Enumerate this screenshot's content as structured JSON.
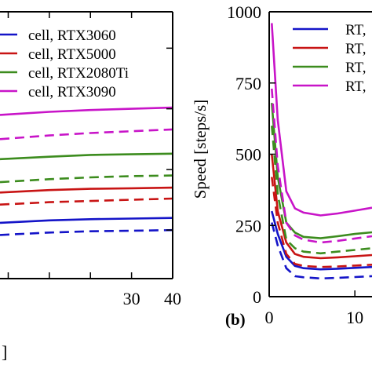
{
  "chart_data": [
    {
      "type": "line",
      "panel_label": "",
      "xlabel": "",
      "xlabel_fragment": "]",
      "ylabel": "",
      "xlim": [
        -2,
        40
      ],
      "ylim": [
        120,
        560
      ],
      "x_ticks": [
        "30",
        "40"
      ],
      "legend": {
        "placement": "top-right",
        "entries": [
          {
            "label": "cell, RTX3060",
            "color": "#1414c8"
          },
          {
            "label": "cell, RTX5000",
            "color": "#c81414"
          },
          {
            "label": "cell, RTX2080Ti",
            "color": "#3c8c1e"
          },
          {
            "label": "cell, RTX3090",
            "color": "#c814c8"
          }
        ]
      },
      "series": [
        {
          "color": "#1414c8",
          "style": "solid",
          "x": [
            -2,
            10,
            20,
            30,
            40
          ],
          "y": [
            212,
            216,
            218,
            219,
            220
          ]
        },
        {
          "color": "#1414c8",
          "style": "dashed",
          "x": [
            -2,
            10,
            20,
            30,
            40
          ],
          "y": [
            192,
            196,
            198,
            199,
            200
          ]
        },
        {
          "color": "#c81414",
          "style": "solid",
          "x": [
            -2,
            10,
            20,
            30,
            40
          ],
          "y": [
            262,
            266,
            268,
            269,
            270
          ]
        },
        {
          "color": "#c81414",
          "style": "dashed",
          "x": [
            -2,
            10,
            20,
            30,
            40
          ],
          "y": [
            242,
            246,
            248,
            250,
            252
          ]
        },
        {
          "color": "#3c8c1e",
          "style": "solid",
          "x": [
            -2,
            10,
            20,
            30,
            40
          ],
          "y": [
            317,
            321,
            324,
            325,
            326
          ]
        },
        {
          "color": "#3c8c1e",
          "style": "dashed",
          "x": [
            -2,
            10,
            20,
            30,
            40
          ],
          "y": [
            279,
            284,
            287,
            289,
            290
          ]
        },
        {
          "color": "#c814c8",
          "style": "solid",
          "x": [
            -2,
            10,
            20,
            30,
            40
          ],
          "y": [
            390,
            395,
            398,
            400,
            402
          ]
        },
        {
          "color": "#c814c8",
          "style": "dashed",
          "x": [
            -2,
            10,
            20,
            30,
            40
          ],
          "y": [
            350,
            356,
            360,
            363,
            366
          ]
        }
      ]
    },
    {
      "type": "line",
      "panel_label": "(b)",
      "xlabel": "",
      "ylabel": "Speed [steps/s]",
      "xlim": [
        0,
        12
      ],
      "ylim": [
        0,
        1000
      ],
      "x_ticks": [
        "0",
        "10"
      ],
      "y_ticks": [
        "0",
        "250",
        "500",
        "750",
        "1000"
      ],
      "legend": {
        "placement": "top-right",
        "entries": [
          {
            "label": "RT,",
            "color": "#1414c8"
          },
          {
            "label": "RT,",
            "color": "#c81414"
          },
          {
            "label": "RT,",
            "color": "#3c8c1e"
          },
          {
            "label": "RT,",
            "color": "#c814c8"
          }
        ]
      },
      "series": [
        {
          "color": "#1414c8",
          "style": "solid",
          "x": [
            0.3,
            1.0,
            2.0,
            3.0,
            4.0,
            6.0,
            8.0,
            10.0,
            12.0
          ],
          "y": [
            300,
            220,
            140,
            108,
            100,
            96,
            98,
            101,
            104
          ]
        },
        {
          "color": "#1414c8",
          "style": "dashed",
          "x": [
            0.3,
            1.0,
            2.0,
            3.0,
            4.0,
            6.0,
            8.0,
            10.0,
            12.0
          ],
          "y": [
            260,
            180,
            100,
            72,
            68,
            64,
            66,
            69,
            72
          ]
        },
        {
          "color": "#c81414",
          "style": "solid",
          "x": [
            0.3,
            1.0,
            2.0,
            3.0,
            4.0,
            6.0,
            8.0,
            10.0,
            12.0
          ],
          "y": [
            500,
            300,
            190,
            150,
            140,
            135,
            138,
            142,
            146
          ]
        },
        {
          "color": "#c81414",
          "style": "dashed",
          "x": [
            0.3,
            1.0,
            2.0,
            3.0,
            4.0,
            6.0,
            8.0,
            10.0,
            12.0
          ],
          "y": [
            420,
            260,
            150,
            115,
            108,
            104,
            106,
            109,
            112
          ]
        },
        {
          "color": "#3c8c1e",
          "style": "solid",
          "x": [
            0.3,
            1.0,
            2.0,
            3.0,
            4.0,
            6.0,
            8.0,
            10.0,
            12.0
          ],
          "y": [
            680,
            420,
            260,
            225,
            210,
            205,
            212,
            220,
            226
          ]
        },
        {
          "color": "#3c8c1e",
          "style": "dashed",
          "x": [
            0.3,
            1.0,
            2.0,
            3.0,
            4.0,
            6.0,
            8.0,
            10.0,
            12.0
          ],
          "y": [
            600,
            360,
            200,
            170,
            158,
            152,
            158,
            164,
            170
          ]
        },
        {
          "color": "#c814c8",
          "style": "solid",
          "x": [
            0.3,
            1.0,
            2.0,
            3.0,
            4.0,
            6.0,
            8.0,
            10.0,
            12.0
          ],
          "y": [
            960,
            620,
            370,
            310,
            295,
            285,
            292,
            302,
            312
          ]
        },
        {
          "color": "#c814c8",
          "style": "dashed",
          "x": [
            0.3,
            1.0,
            2.0,
            3.0,
            4.0,
            6.0,
            8.0,
            10.0,
            12.0
          ],
          "y": [
            730,
            460,
            260,
            215,
            200,
            190,
            196,
            204,
            212
          ]
        }
      ]
    }
  ]
}
